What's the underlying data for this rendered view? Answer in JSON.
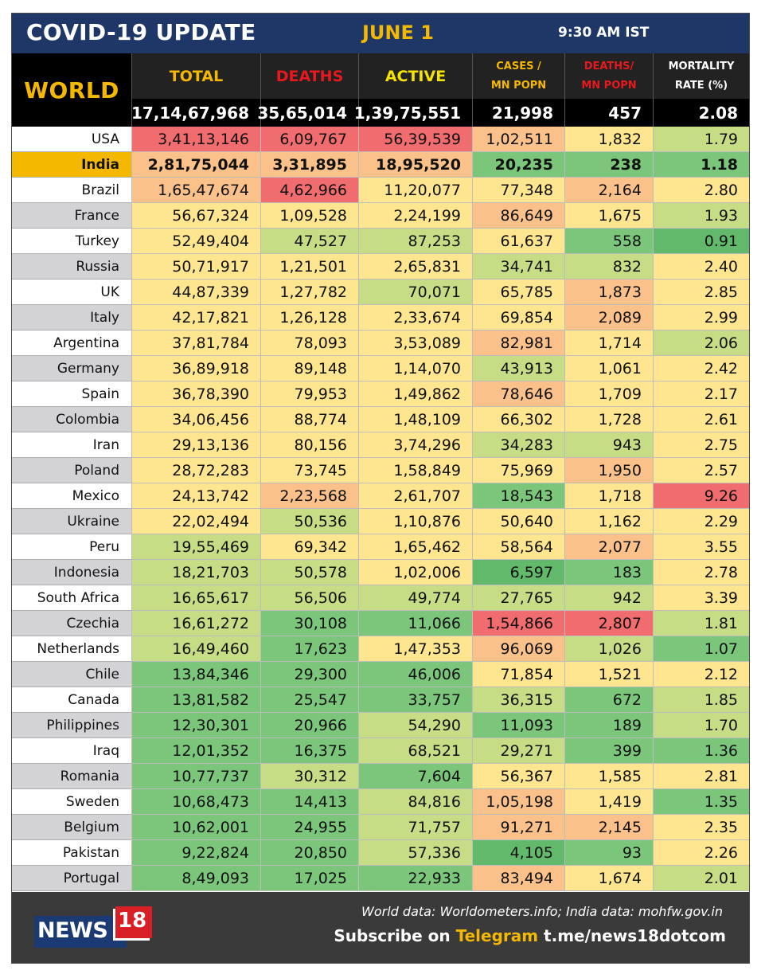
{
  "header": {
    "title": "COVID-19 UPDATE",
    "date": "JUNE 1",
    "time": "9:30 AM IST"
  },
  "world": {
    "label": "WORLD",
    "total": "17,14,67,968",
    "deaths": "35,65,014",
    "active": "1,39,75,551",
    "cases_mn": "21,998",
    "deaths_mn": "457",
    "mortality": "2.08"
  },
  "columns": {
    "total": "TOTAL",
    "deaths": "DEATHS",
    "active": "ACTIVE",
    "cases_mn": "CASES /\nMN POPN",
    "deaths_mn": "DEATHS/\nMN POPN",
    "mortality": "MORTALITY\nRATE (%)"
  },
  "colors": {
    "heading_bar": "#1f3766",
    "accent_yellow": "#f5b800",
    "deaths_red": "#e8191e",
    "footer_bg": "#3a3a3a",
    "heat_scale": [
      "#f06c6e",
      "#fac18a",
      "#fee58f",
      "#c6dd86",
      "#7cc67c",
      "#62b86b"
    ]
  },
  "rows": [
    {
      "country": "USA",
      "total": "3,41,13,146",
      "deaths": "6,09,767",
      "active": "56,39,539",
      "cases_mn": "1,02,511",
      "deaths_mn": "1,832",
      "mortality": "1.79",
      "heat": [
        0,
        0,
        0,
        1,
        2,
        3
      ]
    },
    {
      "country": "India",
      "total": "2,81,75,044",
      "deaths": "3,31,895",
      "active": "18,95,520",
      "cases_mn": "20,235",
      "deaths_mn": "238",
      "mortality": "1.18",
      "heat": [
        1,
        1,
        1,
        4,
        4,
        4
      ],
      "highlight": true
    },
    {
      "country": "Brazil",
      "total": "1,65,47,674",
      "deaths": "4,62,966",
      "active": "11,20,077",
      "cases_mn": "77,348",
      "deaths_mn": "2,164",
      "mortality": "2.80",
      "heat": [
        1,
        0,
        2,
        2,
        1,
        2
      ]
    },
    {
      "country": "France",
      "total": "56,67,324",
      "deaths": "1,09,528",
      "active": "2,24,199",
      "cases_mn": "86,649",
      "deaths_mn": "1,675",
      "mortality": "1.93",
      "heat": [
        2,
        2,
        2,
        1,
        2,
        3
      ]
    },
    {
      "country": "Turkey",
      "total": "52,49,404",
      "deaths": "47,527",
      "active": "87,253",
      "cases_mn": "61,637",
      "deaths_mn": "558",
      "mortality": "0.91",
      "heat": [
        2,
        3,
        3,
        2,
        4,
        5
      ]
    },
    {
      "country": "Russia",
      "total": "50,71,917",
      "deaths": "1,21,501",
      "active": "2,65,831",
      "cases_mn": "34,741",
      "deaths_mn": "832",
      "mortality": "2.40",
      "heat": [
        2,
        2,
        2,
        3,
        3,
        2
      ]
    },
    {
      "country": "UK",
      "total": "44,87,339",
      "deaths": "1,27,782",
      "active": "70,071",
      "cases_mn": "65,785",
      "deaths_mn": "1,873",
      "mortality": "2.85",
      "heat": [
        2,
        2,
        3,
        2,
        1,
        2
      ]
    },
    {
      "country": "Italy",
      "total": "42,17,821",
      "deaths": "1,26,128",
      "active": "2,33,674",
      "cases_mn": "69,854",
      "deaths_mn": "2,089",
      "mortality": "2.99",
      "heat": [
        2,
        2,
        2,
        2,
        1,
        2
      ]
    },
    {
      "country": "Argentina",
      "total": "37,81,784",
      "deaths": "78,093",
      "active": "3,53,089",
      "cases_mn": "82,981",
      "deaths_mn": "1,714",
      "mortality": "2.06",
      "heat": [
        2,
        2,
        2,
        1,
        2,
        3
      ]
    },
    {
      "country": "Germany",
      "total": "36,89,918",
      "deaths": "89,148",
      "active": "1,14,070",
      "cases_mn": "43,913",
      "deaths_mn": "1,061",
      "mortality": "2.42",
      "heat": [
        2,
        2,
        2,
        3,
        2,
        2
      ]
    },
    {
      "country": "Spain",
      "total": "36,78,390",
      "deaths": "79,953",
      "active": "1,49,862",
      "cases_mn": "78,646",
      "deaths_mn": "1,709",
      "mortality": "2.17",
      "heat": [
        2,
        2,
        2,
        1,
        2,
        2
      ]
    },
    {
      "country": "Colombia",
      "total": "34,06,456",
      "deaths": "88,774",
      "active": "1,48,109",
      "cases_mn": "66,302",
      "deaths_mn": "1,728",
      "mortality": "2.61",
      "heat": [
        2,
        2,
        2,
        2,
        2,
        2
      ]
    },
    {
      "country": "Iran",
      "total": "29,13,136",
      "deaths": "80,156",
      "active": "3,74,296",
      "cases_mn": "34,283",
      "deaths_mn": "943",
      "mortality": "2.75",
      "heat": [
        2,
        2,
        2,
        3,
        3,
        2
      ]
    },
    {
      "country": "Poland",
      "total": "28,72,283",
      "deaths": "73,745",
      "active": "1,58,849",
      "cases_mn": "75,969",
      "deaths_mn": "1,950",
      "mortality": "2.57",
      "heat": [
        2,
        2,
        2,
        2,
        1,
        2
      ]
    },
    {
      "country": "Mexico",
      "total": "24,13,742",
      "deaths": "2,23,568",
      "active": "2,61,707",
      "cases_mn": "18,543",
      "deaths_mn": "1,718",
      "mortality": "9.26",
      "heat": [
        2,
        1,
        2,
        4,
        2,
        0
      ]
    },
    {
      "country": "Ukraine",
      "total": "22,02,494",
      "deaths": "50,536",
      "active": "1,10,876",
      "cases_mn": "50,640",
      "deaths_mn": "1,162",
      "mortality": "2.29",
      "heat": [
        2,
        3,
        2,
        2,
        2,
        2
      ]
    },
    {
      "country": "Peru",
      "total": "19,55,469",
      "deaths": "69,342",
      "active": "1,65,462",
      "cases_mn": "58,564",
      "deaths_mn": "2,077",
      "mortality": "3.55",
      "heat": [
        3,
        2,
        2,
        2,
        1,
        2
      ]
    },
    {
      "country": "Indonesia",
      "total": "18,21,703",
      "deaths": "50,578",
      "active": "1,02,006",
      "cases_mn": "6,597",
      "deaths_mn": "183",
      "mortality": "2.78",
      "heat": [
        3,
        3,
        2,
        5,
        4,
        2
      ]
    },
    {
      "country": "South Africa",
      "total": "16,65,617",
      "deaths": "56,506",
      "active": "49,774",
      "cases_mn": "27,765",
      "deaths_mn": "942",
      "mortality": "3.39",
      "heat": [
        3,
        3,
        3,
        3,
        3,
        2
      ]
    },
    {
      "country": "Czechia",
      "total": "16,61,272",
      "deaths": "30,108",
      "active": "11,066",
      "cases_mn": "1,54,866",
      "deaths_mn": "2,807",
      "mortality": "1.81",
      "heat": [
        3,
        4,
        4,
        0,
        0,
        3
      ]
    },
    {
      "country": "Netherlands",
      "total": "16,49,460",
      "deaths": "17,623",
      "active": "1,47,353",
      "cases_mn": "96,069",
      "deaths_mn": "1,026",
      "mortality": "1.07",
      "heat": [
        3,
        4,
        2,
        1,
        3,
        4
      ]
    },
    {
      "country": "Chile",
      "total": "13,84,346",
      "deaths": "29,300",
      "active": "46,006",
      "cases_mn": "71,854",
      "deaths_mn": "1,521",
      "mortality": "2.12",
      "heat": [
        4,
        4,
        4,
        2,
        2,
        2
      ]
    },
    {
      "country": "Canada",
      "total": "13,81,582",
      "deaths": "25,547",
      "active": "33,757",
      "cases_mn": "36,315",
      "deaths_mn": "672",
      "mortality": "1.85",
      "heat": [
        4,
        4,
        4,
        3,
        4,
        3
      ]
    },
    {
      "country": "Philippines",
      "total": "12,30,301",
      "deaths": "20,966",
      "active": "54,290",
      "cases_mn": "11,093",
      "deaths_mn": "189",
      "mortality": "1.70",
      "heat": [
        4,
        4,
        3,
        4,
        4,
        3
      ]
    },
    {
      "country": "Iraq",
      "total": "12,01,352",
      "deaths": "16,375",
      "active": "68,521",
      "cases_mn": "29,271",
      "deaths_mn": "399",
      "mortality": "1.36",
      "heat": [
        4,
        4,
        3,
        3,
        4,
        4
      ]
    },
    {
      "country": "Romania",
      "total": "10,77,737",
      "deaths": "30,312",
      "active": "7,604",
      "cases_mn": "56,367",
      "deaths_mn": "1,585",
      "mortality": "2.81",
      "heat": [
        4,
        3,
        4,
        2,
        2,
        2
      ]
    },
    {
      "country": "Sweden",
      "total": "10,68,473",
      "deaths": "14,413",
      "active": "84,816",
      "cases_mn": "1,05,198",
      "deaths_mn": "1,419",
      "mortality": "1.35",
      "heat": [
        4,
        4,
        3,
        1,
        2,
        4
      ]
    },
    {
      "country": "Belgium",
      "total": "10,62,001",
      "deaths": "24,955",
      "active": "71,757",
      "cases_mn": "91,271",
      "deaths_mn": "2,145",
      "mortality": "2.35",
      "heat": [
        4,
        4,
        3,
        1,
        1,
        2
      ]
    },
    {
      "country": "Pakistan",
      "total": "9,22,824",
      "deaths": "20,850",
      "active": "57,336",
      "cases_mn": "4,105",
      "deaths_mn": "93",
      "mortality": "2.26",
      "heat": [
        4,
        4,
        3,
        5,
        4,
        2
      ]
    },
    {
      "country": "Portugal",
      "total": "8,49,093",
      "deaths": "17,025",
      "active": "22,933",
      "cases_mn": "83,494",
      "deaths_mn": "1,674",
      "mortality": "2.01",
      "heat": [
        4,
        4,
        4,
        1,
        2,
        3
      ]
    }
  ],
  "footer": {
    "logo_text": "NEWS",
    "logo_number": "18",
    "credits": "World data: Worldometers.info; India data: mohfw.gov.in",
    "subscribe_prefix": "Subscribe on ",
    "subscribe_platform": "Telegram",
    "subscribe_link": " t.me/news18dotcom"
  }
}
